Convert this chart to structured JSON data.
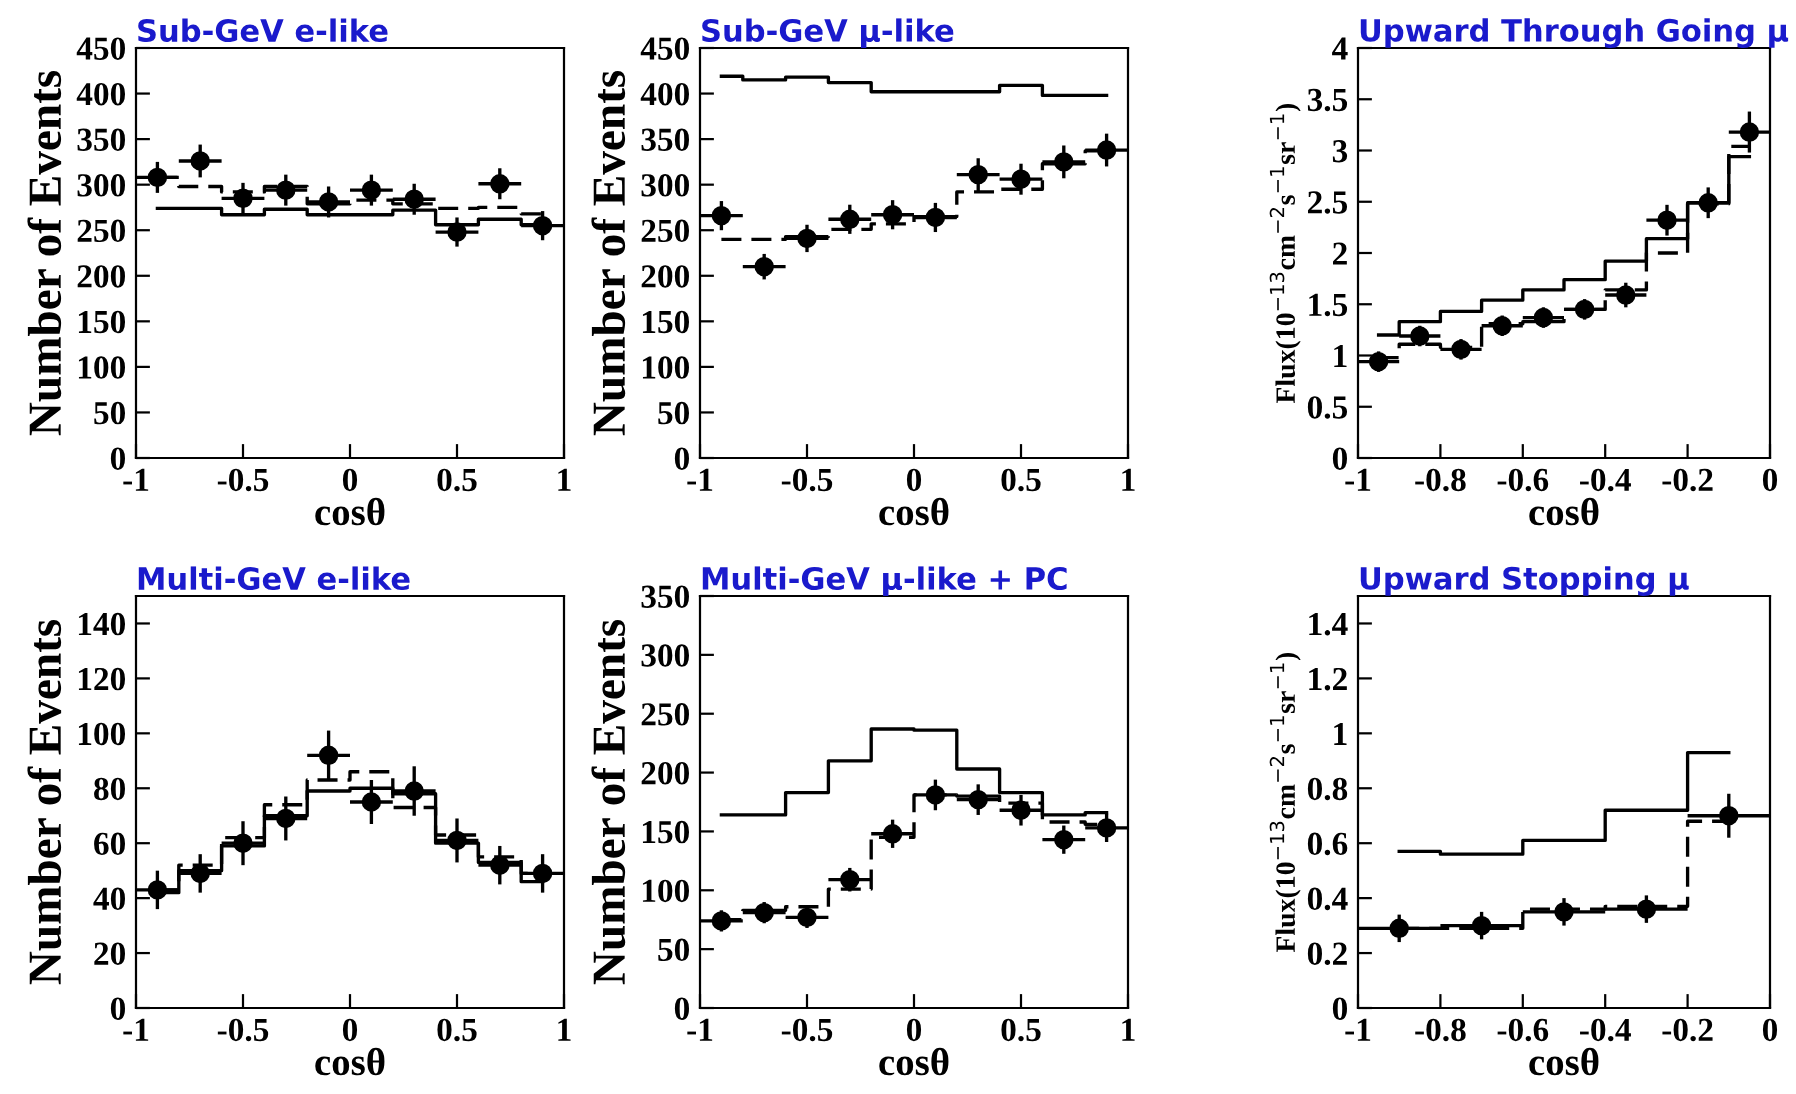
{
  "chart_data": [
    {
      "type": "scatter",
      "title": "Sub-GeV e-like",
      "xlabel": "cosθ",
      "ylabel": "Number of Events",
      "xlim": [
        -1,
        1
      ],
      "ylim": [
        0,
        450
      ],
      "xticks": [
        -1,
        -0.5,
        0,
        0.5,
        1
      ],
      "yticks": [
        0,
        50,
        100,
        150,
        200,
        250,
        300,
        350,
        400,
        450
      ],
      "grid": false,
      "series": [
        {
          "color": "#000000",
          "marker": "circle",
          "x": [
            -0.9,
            -0.7,
            -0.5,
            -0.3,
            -0.1,
            0.1,
            0.3,
            0.5,
            0.7,
            0.9
          ],
          "values": [
            308,
            326,
            285,
            294,
            281,
            294,
            284,
            248,
            301,
            255
          ],
          "errors": [
            17,
            18,
            17,
            17,
            17,
            17,
            17,
            16,
            17,
            16
          ],
          "xerrors": [
            0.1,
            0.1,
            0.1,
            0.1,
            0.1,
            0.1,
            0.1,
            0.1,
            0.1,
            0.1
          ]
        },
        {
          "type": "step",
          "color": "#000000",
          "line_style": "solid",
          "x": [
            -0.9,
            -0.7,
            -0.5,
            -0.3,
            -0.1,
            0.1,
            0.3,
            0.5,
            0.7,
            0.9
          ],
          "values": [
            274,
            274,
            267,
            273,
            267,
            267,
            272,
            256,
            262,
            256
          ]
        },
        {
          "type": "step",
          "color": "#000000",
          "line_style": "dashed",
          "x": [
            -0.9,
            -0.7,
            -0.5,
            -0.3,
            -0.1,
            0.1,
            0.3,
            0.5,
            0.7,
            0.9
          ],
          "values": [
            308,
            298,
            292,
            298,
            279,
            283,
            279,
            274,
            275,
            268
          ]
        }
      ]
    },
    {
      "type": "scatter",
      "title": "Sub-GeV μ-like",
      "xlabel": "cosθ",
      "ylabel": "Number of Events",
      "xlim": [
        -1,
        1
      ],
      "ylim": [
        0,
        450
      ],
      "xticks": [
        -1,
        -0.5,
        0,
        0.5,
        1
      ],
      "yticks": [
        0,
        50,
        100,
        150,
        200,
        250,
        300,
        350,
        400,
        450
      ],
      "grid": false,
      "series": [
        {
          "color": "#000000",
          "marker": "circle",
          "x": [
            -0.9,
            -0.7,
            -0.5,
            -0.3,
            -0.1,
            0.1,
            0.3,
            0.5,
            0.7,
            0.9
          ],
          "values": [
            266,
            210,
            241,
            262,
            267,
            264,
            311,
            306,
            325,
            338
          ],
          "errors": [
            16,
            14,
            15,
            16,
            16,
            16,
            18,
            17,
            18,
            18
          ],
          "xerrors": [
            0.1,
            0.1,
            0.1,
            0.1,
            0.1,
            0.1,
            0.1,
            0.1,
            0.1,
            0.1
          ]
        },
        {
          "type": "step",
          "color": "#000000",
          "line_style": "solid",
          "x": [
            -0.9,
            -0.7,
            -0.5,
            -0.3,
            -0.1,
            0.1,
            0.3,
            0.5,
            0.7,
            0.9
          ],
          "values": [
            419,
            415,
            418,
            412,
            402,
            402,
            402,
            409,
            398,
            398
          ]
        },
        {
          "type": "step",
          "color": "#000000",
          "line_style": "dashed",
          "x": [
            -0.9,
            -0.7,
            -0.5,
            -0.3,
            -0.1,
            0.1,
            0.3,
            0.5,
            0.7,
            0.9
          ],
          "values": [
            240,
            240,
            243,
            251,
            257,
            265,
            292,
            295,
            323,
            337
          ]
        }
      ]
    },
    {
      "type": "scatter",
      "title": "Upward Through Going μ",
      "xlabel": "cosθ",
      "ylabel": "Flux(10$^{−13}$cm$^{−2}$s$^{−1}$sr$^{−1}$)",
      "xlim": [
        -1,
        0
      ],
      "ylim": [
        0,
        4
      ],
      "xticks": [
        -1,
        -0.8,
        -0.6,
        -0.4,
        -0.2,
        0
      ],
      "yticks": [
        0,
        0.5,
        1,
        1.5,
        2,
        2.5,
        3,
        3.5,
        4
      ],
      "grid": false,
      "series": [
        {
          "color": "#000000",
          "marker": "circle",
          "x": [
            -0.95,
            -0.85,
            -0.75,
            -0.65,
            -0.55,
            -0.45,
            -0.35,
            -0.25,
            -0.15,
            -0.05
          ],
          "values": [
            0.94,
            1.19,
            1.06,
            1.29,
            1.37,
            1.45,
            1.59,
            2.32,
            2.49,
            3.18
          ],
          "errors": [
            0.1,
            0.1,
            0.1,
            0.1,
            0.1,
            0.1,
            0.12,
            0.15,
            0.15,
            0.2
          ],
          "xerrors": [
            0.05,
            0.05,
            0.05,
            0.05,
            0.05,
            0.05,
            0.05,
            0.05,
            0.05,
            0.05
          ]
        },
        {
          "type": "step",
          "color": "#000000",
          "line_style": "solid",
          "x": [
            -0.95,
            -0.85,
            -0.75,
            -0.65,
            -0.55,
            -0.45,
            -0.35,
            -0.25,
            -0.15,
            -0.05
          ],
          "values": [
            1.2,
            1.33,
            1.43,
            1.54,
            1.64,
            1.74,
            1.92,
            2.14,
            2.49,
            2.94
          ]
        },
        {
          "type": "step",
          "color": "#000000",
          "line_style": "dashed",
          "x": [
            -0.95,
            -0.85,
            -0.75,
            -0.65,
            -0.55,
            -0.45,
            -0.35,
            -0.25,
            -0.15,
            -0.05
          ],
          "values": [
            0.98,
            1.11,
            1.08,
            1.31,
            1.33,
            1.45,
            1.64,
            2.0,
            2.48,
            3.04
          ]
        }
      ]
    },
    {
      "type": "scatter",
      "title": "Multi-GeV e-like",
      "xlabel": "cosθ",
      "ylabel": "Number of Events",
      "xlim": [
        -1,
        1
      ],
      "ylim": [
        0,
        150
      ],
      "xticks": [
        -1,
        -0.5,
        0,
        0.5,
        1
      ],
      "yticks": [
        0,
        20,
        40,
        60,
        80,
        100,
        120,
        140
      ],
      "grid": false,
      "series": [
        {
          "color": "#000000",
          "marker": "circle",
          "x": [
            -0.9,
            -0.7,
            -0.5,
            -0.3,
            -0.1,
            0.1,
            0.3,
            0.5,
            0.7,
            0.9
          ],
          "values": [
            43,
            49,
            60,
            69,
            92,
            75,
            79,
            61,
            52,
            49
          ],
          "errors": [
            7,
            7,
            8,
            8,
            9,
            8,
            9,
            8,
            7,
            7
          ],
          "xerrors": [
            0.1,
            0.1,
            0.1,
            0.1,
            0.1,
            0.1,
            0.1,
            0.1,
            0.1,
            0.1
          ]
        },
        {
          "type": "step",
          "color": "#000000",
          "line_style": "solid",
          "x": [
            -0.9,
            -0.7,
            -0.5,
            -0.3,
            -0.1,
            0.1,
            0.3,
            0.5,
            0.7,
            0.9
          ],
          "values": [
            42,
            50,
            59,
            70,
            79,
            80,
            78,
            60,
            53,
            46
          ]
        },
        {
          "type": "step",
          "color": "#000000",
          "line_style": "dashed",
          "x": [
            -0.9,
            -0.7,
            -0.5,
            -0.3,
            -0.1,
            0.1,
            0.3,
            0.5,
            0.7,
            0.9
          ],
          "values": [
            43,
            52,
            62,
            74,
            83,
            86,
            73,
            63,
            55,
            49
          ]
        }
      ]
    },
    {
      "type": "scatter",
      "title": "Multi-GeV μ-like + PC",
      "xlabel": "cosθ",
      "ylabel": "Number of Events",
      "xlim": [
        -1,
        1
      ],
      "ylim": [
        0,
        350
      ],
      "xticks": [
        -1,
        -0.5,
        0,
        0.5,
        1
      ],
      "yticks": [
        0,
        50,
        100,
        150,
        200,
        250,
        300,
        350
      ],
      "grid": false,
      "series": [
        {
          "color": "#000000",
          "marker": "circle",
          "x": [
            -0.9,
            -0.7,
            -0.5,
            -0.3,
            -0.1,
            0.1,
            0.3,
            0.5,
            0.7,
            0.9
          ],
          "values": [
            74,
            81,
            77,
            109,
            148,
            181,
            177,
            168,
            143,
            153
          ],
          "errors": [
            9,
            9,
            9,
            10,
            12,
            13,
            13,
            13,
            12,
            12
          ],
          "xerrors": [
            0.1,
            0.1,
            0.1,
            0.1,
            0.1,
            0.1,
            0.1,
            0.1,
            0.1,
            0.1
          ]
        },
        {
          "type": "step",
          "color": "#000000",
          "line_style": "solid",
          "x": [
            -0.9,
            -0.7,
            -0.5,
            -0.3,
            -0.1,
            0.1,
            0.3,
            0.5,
            0.7,
            0.9
          ],
          "values": [
            164,
            164,
            183,
            210,
            237,
            236,
            203,
            183,
            164,
            166
          ]
        },
        {
          "type": "step",
          "color": "#000000",
          "line_style": "dashed",
          "x": [
            -0.9,
            -0.7,
            -0.5,
            -0.3,
            -0.1,
            0.1,
            0.3,
            0.5,
            0.7,
            0.9
          ],
          "values": [
            75,
            83,
            86,
            101,
            145,
            181,
            180,
            174,
            158,
            156
          ]
        }
      ]
    },
    {
      "type": "scatter",
      "title": "Upward Stopping μ",
      "xlabel": "cosθ",
      "ylabel": "Flux(10$^{−13}$cm$^{−2}$s$^{−1}$sr$^{−1}$)",
      "xlim": [
        -1,
        0
      ],
      "ylim": [
        0,
        1.5
      ],
      "xticks": [
        -1,
        -0.8,
        -0.6,
        -0.4,
        -0.2,
        0
      ],
      "yticks": [
        0,
        0.2,
        0.4,
        0.6,
        0.8,
        1,
        1.2,
        1.4
      ],
      "grid": false,
      "series": [
        {
          "color": "#000000",
          "marker": "circle",
          "x": [
            -0.9,
            -0.7,
            -0.5,
            -0.3,
            -0.1
          ],
          "values": [
            0.29,
            0.3,
            0.35,
            0.36,
            0.7
          ],
          "errors": [
            0.05,
            0.05,
            0.05,
            0.05,
            0.08
          ],
          "xerrors": [
            0.1,
            0.1,
            0.1,
            0.1,
            0.1
          ]
        },
        {
          "type": "step",
          "color": "#000000",
          "line_style": "solid",
          "x": [
            -0.9,
            -0.7,
            -0.5,
            -0.3,
            -0.1
          ],
          "values": [
            0.57,
            0.56,
            0.61,
            0.72,
            0.93
          ]
        },
        {
          "type": "step",
          "color": "#000000",
          "line_style": "dashed",
          "x": [
            -0.9,
            -0.7,
            -0.5,
            -0.3,
            -0.1
          ],
          "values": [
            0.29,
            0.29,
            0.36,
            0.37,
            0.68
          ]
        }
      ]
    }
  ]
}
